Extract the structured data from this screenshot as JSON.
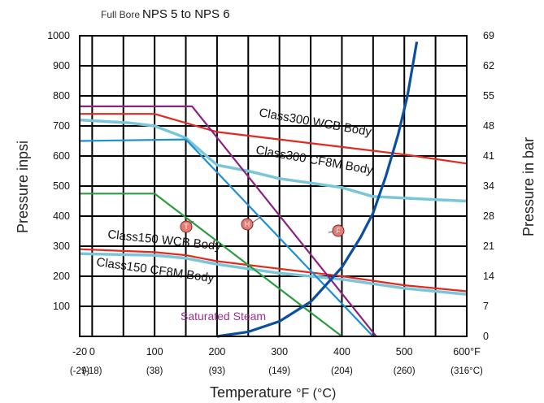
{
  "chart_data": {
    "type": "line",
    "subtitle_prefix": "Full Bore :",
    "subtitle": "NPS 5 to NPS 6",
    "ylabel_left": "Pressure inpsi",
    "ylabel_right": "Pressure in bar",
    "xlabel_main": "Temperature ",
    "xlabel_unit": "°F (°C)",
    "xlim": [
      -20,
      600
    ],
    "ylim": [
      0,
      1000
    ],
    "x_ticks_f": [
      "-20",
      "0",
      "100",
      "200",
      "300",
      "400",
      "500",
      "600°F"
    ],
    "x_ticks_c": [
      "(-29)",
      "(-18)",
      "(38)",
      "(93)",
      "(149)",
      "(204)",
      "(260)",
      "(316°C)"
    ],
    "y_ticks_left": [
      "1000",
      "900",
      "800",
      "700",
      "600",
      "500",
      "400",
      "300",
      "200",
      "100"
    ],
    "y_ticks_right": [
      "69",
      "62",
      "55",
      "48",
      "41",
      "34",
      "28",
      "21",
      "14",
      "7",
      "0"
    ],
    "grid": true,
    "series": [
      {
        "name": "Class300 WCB Body",
        "color": "#e02a1f",
        "points": [
          [
            -20,
            740
          ],
          [
            100,
            740
          ],
          [
            150,
            710
          ],
          [
            200,
            680
          ],
          [
            300,
            655
          ],
          [
            400,
            630
          ],
          [
            500,
            605
          ],
          [
            600,
            575
          ]
        ]
      },
      {
        "name": "Class300 CF8M Body",
        "color": "#78c6d8",
        "points": [
          [
            -20,
            720
          ],
          [
            60,
            710
          ],
          [
            100,
            700
          ],
          [
            150,
            660
          ],
          [
            200,
            570
          ],
          [
            250,
            550
          ],
          [
            300,
            525
          ],
          [
            400,
            495
          ],
          [
            450,
            465
          ],
          [
            500,
            460
          ],
          [
            600,
            450
          ]
        ]
      },
      {
        "name": "Class150 WCB Body",
        "color": "#e02a1f",
        "points": [
          [
            -20,
            290
          ],
          [
            100,
            280
          ],
          [
            150,
            270
          ],
          [
            200,
            250
          ],
          [
            300,
            225
          ],
          [
            400,
            200
          ],
          [
            500,
            170
          ],
          [
            600,
            150
          ]
        ]
      },
      {
        "name": "Class150 CF8M Body",
        "color": "#78c6d8",
        "points": [
          [
            -20,
            275
          ],
          [
            100,
            270
          ],
          [
            150,
            260
          ],
          [
            200,
            240
          ],
          [
            300,
            210
          ],
          [
            400,
            190
          ],
          [
            500,
            160
          ],
          [
            600,
            140
          ]
        ]
      },
      {
        "color": "#1a8fd6",
        "points": [
          [
            -20,
            650
          ],
          [
            150,
            655
          ],
          [
            450,
            0
          ]
        ]
      },
      {
        "color": "#2a9d3f",
        "points": [
          [
            -20,
            475
          ],
          [
            100,
            475
          ],
          [
            400,
            0
          ]
        ]
      },
      {
        "color": "#8b2283",
        "points": [
          [
            -20,
            765
          ],
          [
            160,
            765
          ],
          [
            455,
            0
          ]
        ]
      },
      {
        "name": "Saturated Steam",
        "color": "#0b4fa0",
        "points": [
          [
            200,
            0
          ],
          [
            250,
            15
          ],
          [
            300,
            50
          ],
          [
            350,
            115
          ],
          [
            400,
            230
          ],
          [
            430,
            330
          ],
          [
            450,
            410
          ],
          [
            470,
            530
          ],
          [
            490,
            670
          ],
          [
            505,
            800
          ],
          [
            520,
            980
          ]
        ]
      }
    ],
    "markers": [
      "T",
      "H",
      "F"
    ]
  }
}
